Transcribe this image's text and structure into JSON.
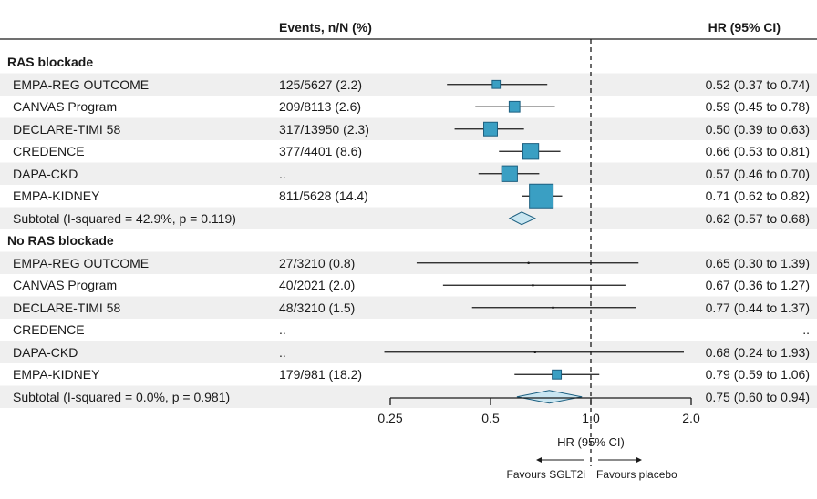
{
  "header": {
    "events_col": "Events, n/N (%)",
    "hr_col": "HR (95% CI)"
  },
  "colors": {
    "box_fill": "#3a9fc3",
    "box_stroke": "#1c5f80",
    "diamond_fill": "#c9e6f1",
    "diamond_stroke": "#1c5f80",
    "stripe": "#efefef",
    "line": "#1a1a1a"
  },
  "chart_data": {
    "type": "forest",
    "x_scale": "log",
    "xlim": [
      0.25,
      2.0
    ],
    "ticks": [
      0.25,
      0.5,
      1.0,
      2.0
    ],
    "tick_labels": [
      "0.25",
      "0.5",
      "1.0",
      "2.0"
    ],
    "reference_line": 1.0,
    "xlabel": "HR (95% CI)",
    "favours_left": "Favours SGLT2i",
    "favours_right": "Favours placebo",
    "rows": [
      {
        "kind": "section",
        "label": "RAS blockade"
      },
      {
        "kind": "study",
        "label": "EMPA-REG OUTCOME",
        "events": "125/5627 (2.2)",
        "hr": 0.52,
        "lo": 0.37,
        "hi": 0.74,
        "hr_text": "0.52 (0.37 to 0.74)",
        "weight": 0.25
      },
      {
        "kind": "study",
        "label": "CANVAS Program",
        "events": "209/8113 (2.6)",
        "hr": 0.59,
        "lo": 0.45,
        "hi": 0.78,
        "hr_text": "0.59 (0.45 to 0.78)",
        "weight": 0.38
      },
      {
        "kind": "study",
        "label": "DECLARE-TIMI 58",
        "events": "317/13950 (2.3)",
        "hr": 0.5,
        "lo": 0.39,
        "hi": 0.63,
        "hr_text": "0.50 (0.39 to 0.63)",
        "weight": 0.52
      },
      {
        "kind": "study",
        "label": "CREDENCE",
        "events": "377/4401 (8.6)",
        "hr": 0.66,
        "lo": 0.53,
        "hi": 0.81,
        "hr_text": "0.66 (0.53 to 0.81)",
        "weight": 0.62
      },
      {
        "kind": "study",
        "label": "DAPA-CKD",
        "events": "..",
        "hr": 0.57,
        "lo": 0.46,
        "hi": 0.7,
        "hr_text": "0.57 (0.46 to 0.70)",
        "weight": 0.62
      },
      {
        "kind": "study",
        "label": "EMPA-KIDNEY",
        "events": "811/5628 (14.4)",
        "hr": 0.71,
        "lo": 0.62,
        "hi": 0.82,
        "hr_text": "0.71 (0.62 to 0.82)",
        "weight": 1.0
      },
      {
        "kind": "subtotal",
        "label": "Subtotal (I-squared = 42.9%, p = 0.119)",
        "events": "",
        "hr": 0.62,
        "lo": 0.57,
        "hi": 0.68,
        "hr_text": "0.62 (0.57 to 0.68)"
      },
      {
        "kind": "section",
        "label": "No RAS blockade"
      },
      {
        "kind": "study",
        "label": "EMPA-REG OUTCOME",
        "events": "27/3210 (0.8)",
        "hr": 0.65,
        "lo": 0.3,
        "hi": 1.39,
        "hr_text": "0.65 (0.30 to 1.39)",
        "weight": 0.0
      },
      {
        "kind": "study",
        "label": "CANVAS Program",
        "events": "40/2021 (2.0)",
        "hr": 0.67,
        "lo": 0.36,
        "hi": 1.27,
        "hr_text": "0.67 (0.36 to 1.27)",
        "weight": 0.0
      },
      {
        "kind": "study",
        "label": "DECLARE-TIMI 58",
        "events": "48/3210 (1.5)",
        "hr": 0.77,
        "lo": 0.44,
        "hi": 1.37,
        "hr_text": "0.77 (0.44 to 1.37)",
        "weight": 0.0
      },
      {
        "kind": "study",
        "label": "CREDENCE",
        "events": "..",
        "hr": null,
        "lo": null,
        "hi": null,
        "hr_text": "..",
        "weight": 0.0
      },
      {
        "kind": "study",
        "label": "DAPA-CKD",
        "events": "..",
        "hr": 0.68,
        "lo": 0.24,
        "hi": 1.93,
        "hr_text": "0.68 (0.24 to 1.93)",
        "weight": 0.0
      },
      {
        "kind": "study",
        "label": "EMPA-KIDNEY",
        "events": "179/981 (18.2)",
        "hr": 0.79,
        "lo": 0.59,
        "hi": 1.06,
        "hr_text": "0.79 (0.59 to 1.06)",
        "weight": 0.3
      },
      {
        "kind": "subtotal",
        "label": "Subtotal (I-squared = 0.0%, p = 0.981)",
        "events": "",
        "hr": 0.75,
        "lo": 0.6,
        "hi": 0.94,
        "hr_text": "0.75 (0.60 to 0.94)"
      }
    ]
  }
}
